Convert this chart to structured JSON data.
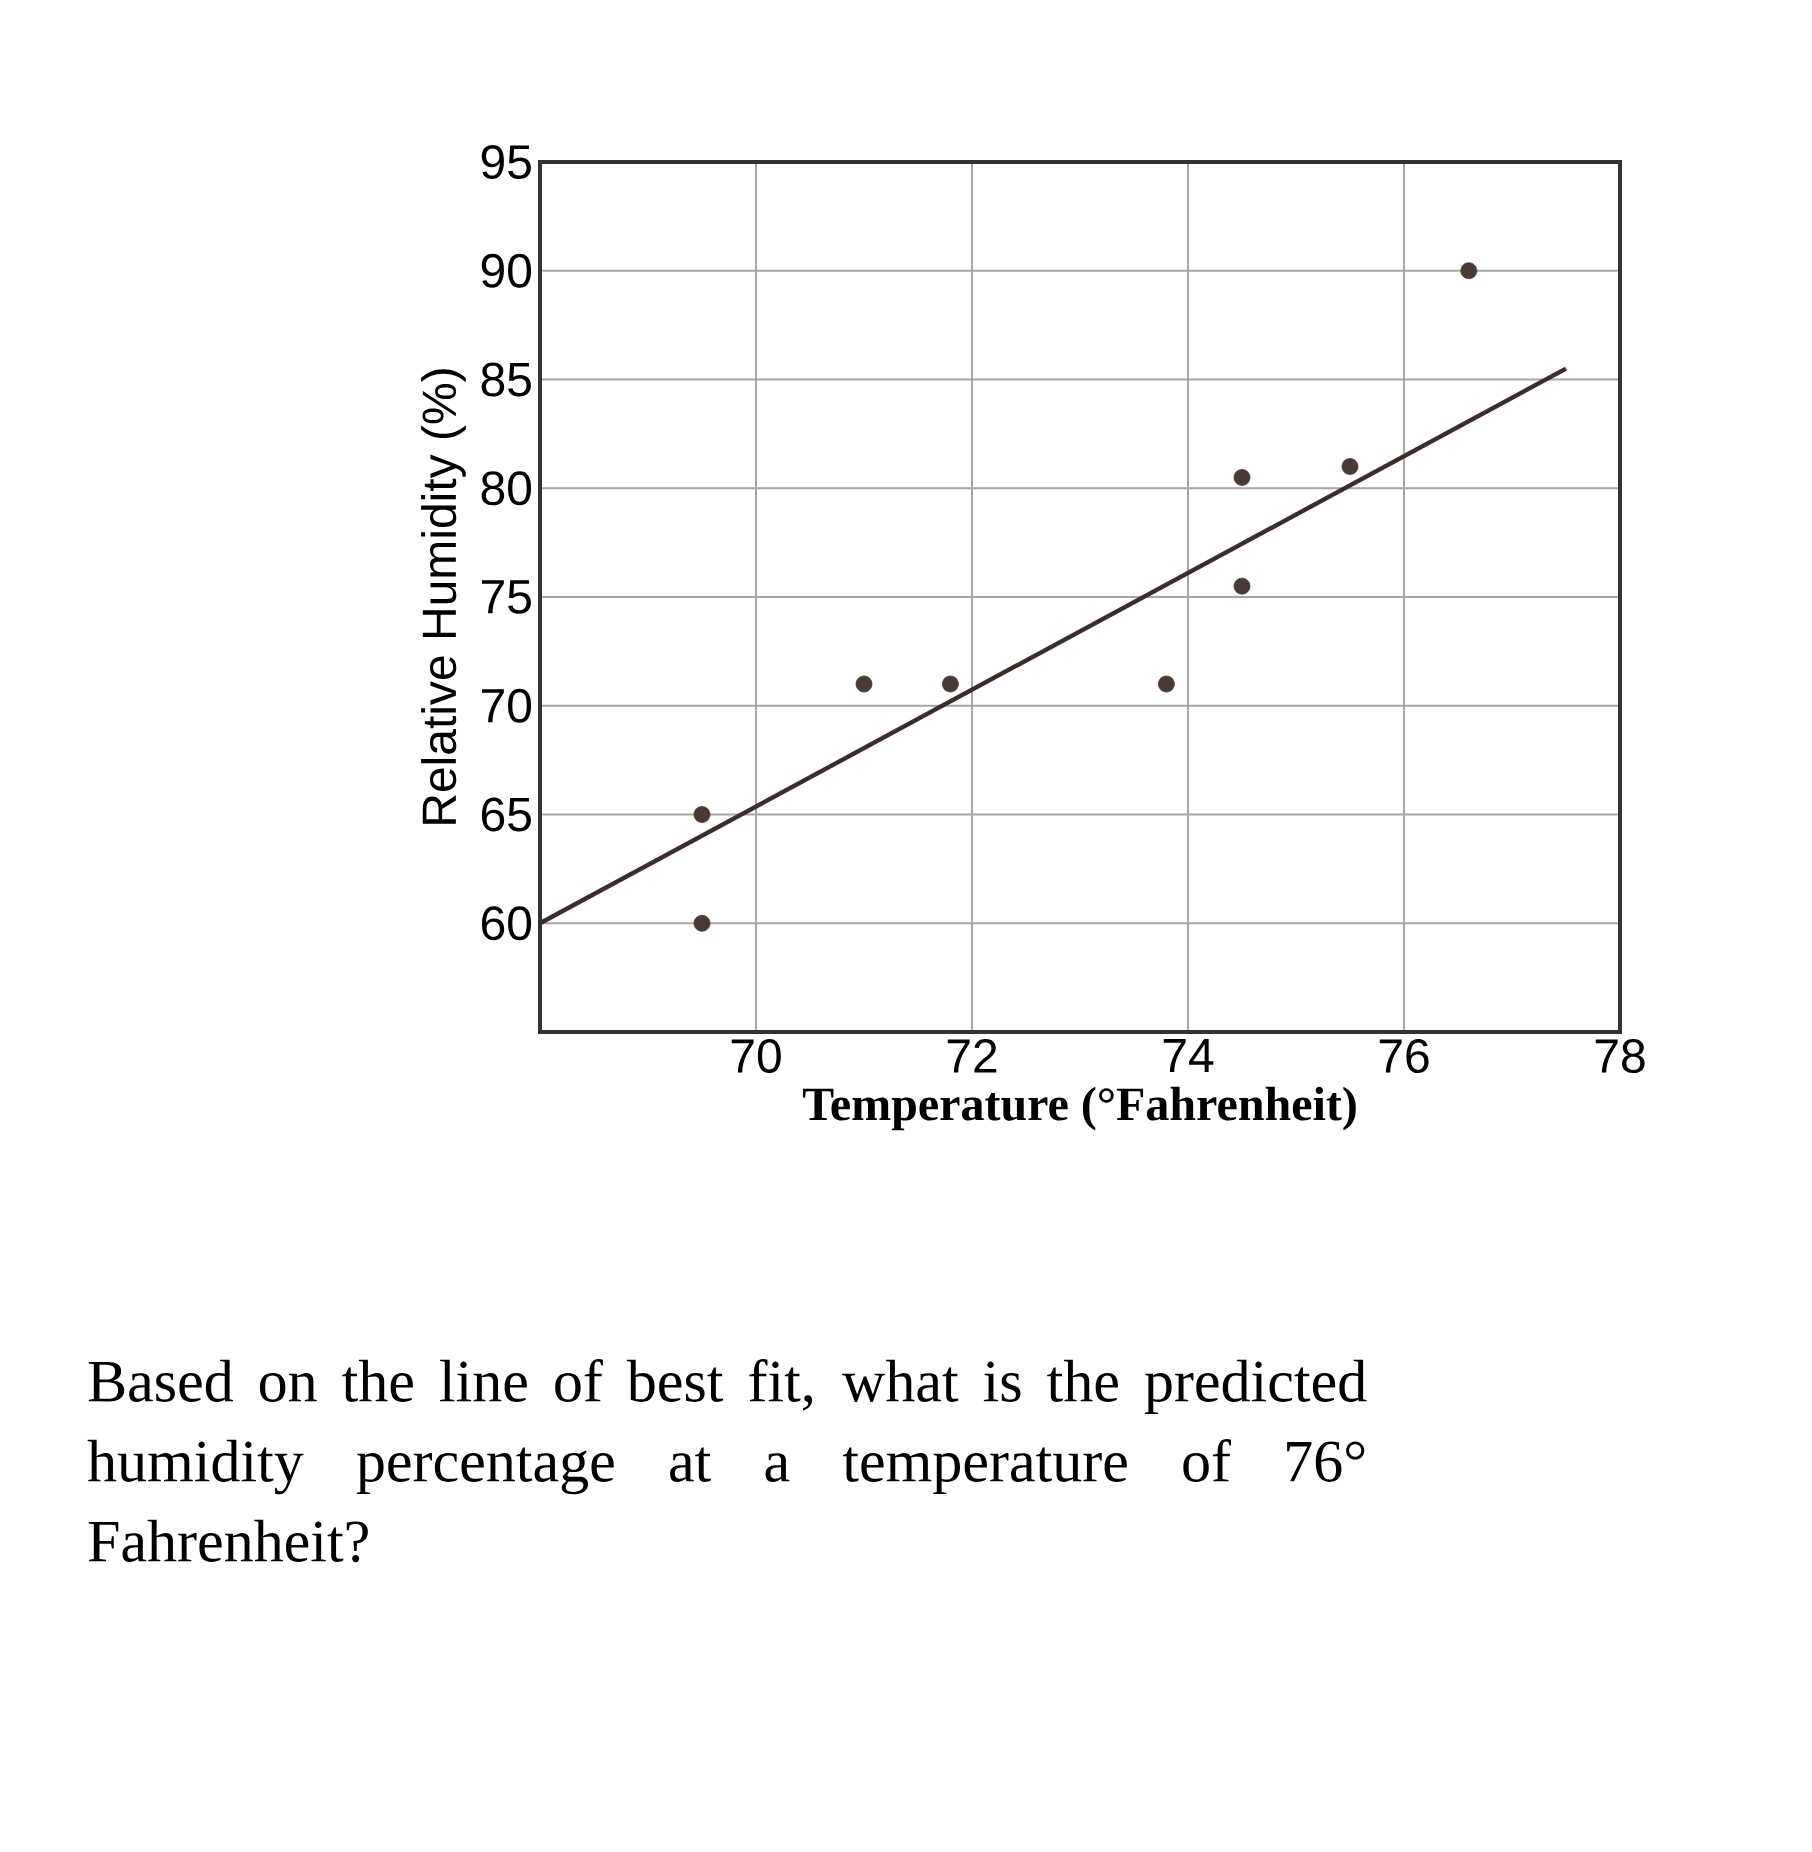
{
  "chart_data": {
    "type": "scatter",
    "xlabel": "Temperature (°Fahrenheit)",
    "ylabel": "Relative Humidity (%)",
    "xlim": [
      68,
      78
    ],
    "ylim": [
      55,
      95
    ],
    "xticks": [
      70,
      72,
      74,
      76,
      78
    ],
    "yticks": [
      60,
      65,
      70,
      75,
      80,
      85,
      90,
      95
    ],
    "grid": true,
    "series": [
      {
        "marker": "circle",
        "color": "#4a3a35",
        "x": [
          69.5,
          69.5,
          71,
          71.8,
          73.8,
          74.5,
          74.5,
          75.5,
          76.6
        ],
        "values": [
          65,
          60,
          71,
          71,
          71,
          75.5,
          80.5,
          81,
          90
        ]
      },
      {
        "type": "line",
        "color": "#3b2e2a",
        "x": [
          68,
          77.5
        ],
        "values": [
          60,
          85.5
        ]
      }
    ],
    "annotations": [
      "Based on the line of best fit, what is the predicted humidity percentage at a temperature of 76° Fahrenheit?"
    ]
  }
}
